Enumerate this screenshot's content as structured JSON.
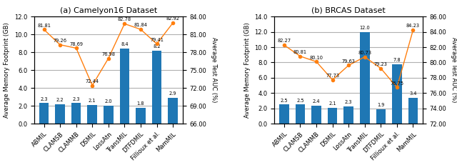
{
  "chart_data": [
    {
      "type": "bar",
      "title": "(a) Camelyon16 Dataset",
      "categories": [
        "ABMIL",
        "CLAMSB",
        "CLAMMB",
        "DSMIL",
        "LossAtn",
        "TransMIL",
        "DTFDMIL",
        "Fillioux et al.",
        "MamMIL"
      ],
      "y_label": "Average Memory Footprint (GB)",
      "y2_label": "Average Test AUC (%)",
      "ylim": [
        0.0,
        12.0
      ],
      "yticks": [
        {
          "value": 0.0,
          "label": "0.0"
        },
        {
          "value": 2.0,
          "label": "2.0"
        },
        {
          "value": 4.0,
          "label": "4.0"
        },
        {
          "value": 6.0,
          "label": "6.0"
        },
        {
          "value": 8.0,
          "label": "8.0"
        },
        {
          "value": 10.0,
          "label": "10.0"
        },
        {
          "value": 12.0,
          "label": "12.0"
        }
      ],
      "y2lim": [
        66.0,
        84.0
      ],
      "y2ticks": [
        {
          "value": 66.0,
          "label": "66.00"
        },
        {
          "value": 69.0,
          "label": "69.00"
        },
        {
          "value": 72.0,
          "label": "72.00"
        },
        {
          "value": 75.0,
          "label": "75.00"
        },
        {
          "value": 78.0,
          "label": "78.00"
        },
        {
          "value": 81.0,
          "label": "81.00"
        },
        {
          "value": 84.0,
          "label": "84.00"
        }
      ],
      "grid": true,
      "data_labels": true,
      "series": [
        {
          "type": "bar",
          "values": [
            2.3,
            2.2,
            2.3,
            2.1,
            2.0,
            8.4,
            1.8,
            8.2,
            2.9
          ],
          "value_labels": [
            "2.3",
            "2.2",
            "2.3",
            "2.1",
            "2.0",
            "8.4",
            "1.8",
            "8.2",
            "2.9"
          ]
        },
        {
          "type": "line",
          "axis": "y2",
          "marker": "o",
          "values": [
            81.81,
            79.26,
            78.69,
            72.44,
            76.98,
            82.78,
            81.84,
            79.41,
            82.92
          ],
          "value_labels": [
            "81.81",
            "79.26",
            "78.69",
            "72.44",
            "76.98",
            "82.78",
            "81.84",
            "79.41",
            "82.92"
          ]
        }
      ]
    },
    {
      "type": "bar",
      "title": "(b) BRCAS Dataset",
      "categories": [
        "ABMIL",
        "CLAMSB",
        "CLAMMB",
        "DSMIL",
        "LossAtn",
        "TransMIL",
        "DTFDMIL",
        "Fillioux et al.",
        "MamMIL"
      ],
      "y_label": "Average Memory Footprint (GB)",
      "y2_label": "Average Test AUC (%)",
      "ylim": [
        0.0,
        14.0
      ],
      "yticks": [
        {
          "value": 0.0,
          "label": "0.0"
        },
        {
          "value": 2.0,
          "label": "2.0"
        },
        {
          "value": 4.0,
          "label": "4.0"
        },
        {
          "value": 6.0,
          "label": "6.0"
        },
        {
          "value": 8.0,
          "label": "8.0"
        },
        {
          "value": 10.0,
          "label": "10.0"
        },
        {
          "value": 12.0,
          "label": "12.0"
        },
        {
          "value": 14.0,
          "label": "14.0"
        }
      ],
      "y2lim": [
        72.0,
        86.0
      ],
      "y2ticks": [
        {
          "value": 72.0,
          "label": "72.00"
        },
        {
          "value": 74.0,
          "label": "74.00"
        },
        {
          "value": 76.0,
          "label": "76.00"
        },
        {
          "value": 78.0,
          "label": "78.00"
        },
        {
          "value": 80.0,
          "label": "80.00"
        },
        {
          "value": 82.0,
          "label": "82.00"
        },
        {
          "value": 84.0,
          "label": "84.00"
        },
        {
          "value": 86.0,
          "label": "86.00"
        }
      ],
      "grid": true,
      "data_labels": true,
      "series": [
        {
          "type": "bar",
          "values": [
            2.5,
            2.5,
            2.4,
            2.1,
            2.3,
            12.0,
            1.9,
            7.8,
            3.4
          ],
          "value_labels": [
            "2.5",
            "2.5",
            "2.4",
            "2.1",
            "2.3",
            "12.0",
            "1.9",
            "7.8",
            "3.4"
          ]
        },
        {
          "type": "line",
          "axis": "y2",
          "marker": "o",
          "values": [
            82.27,
            80.81,
            80.1,
            77.73,
            79.63,
            80.73,
            79.23,
            76.75,
            84.23
          ],
          "value_labels": [
            "82.27",
            "80.81",
            "80.10",
            "77.73",
            "79.63",
            "80.73",
            "79.23",
            "76.75",
            "84.23"
          ]
        }
      ]
    }
  ]
}
